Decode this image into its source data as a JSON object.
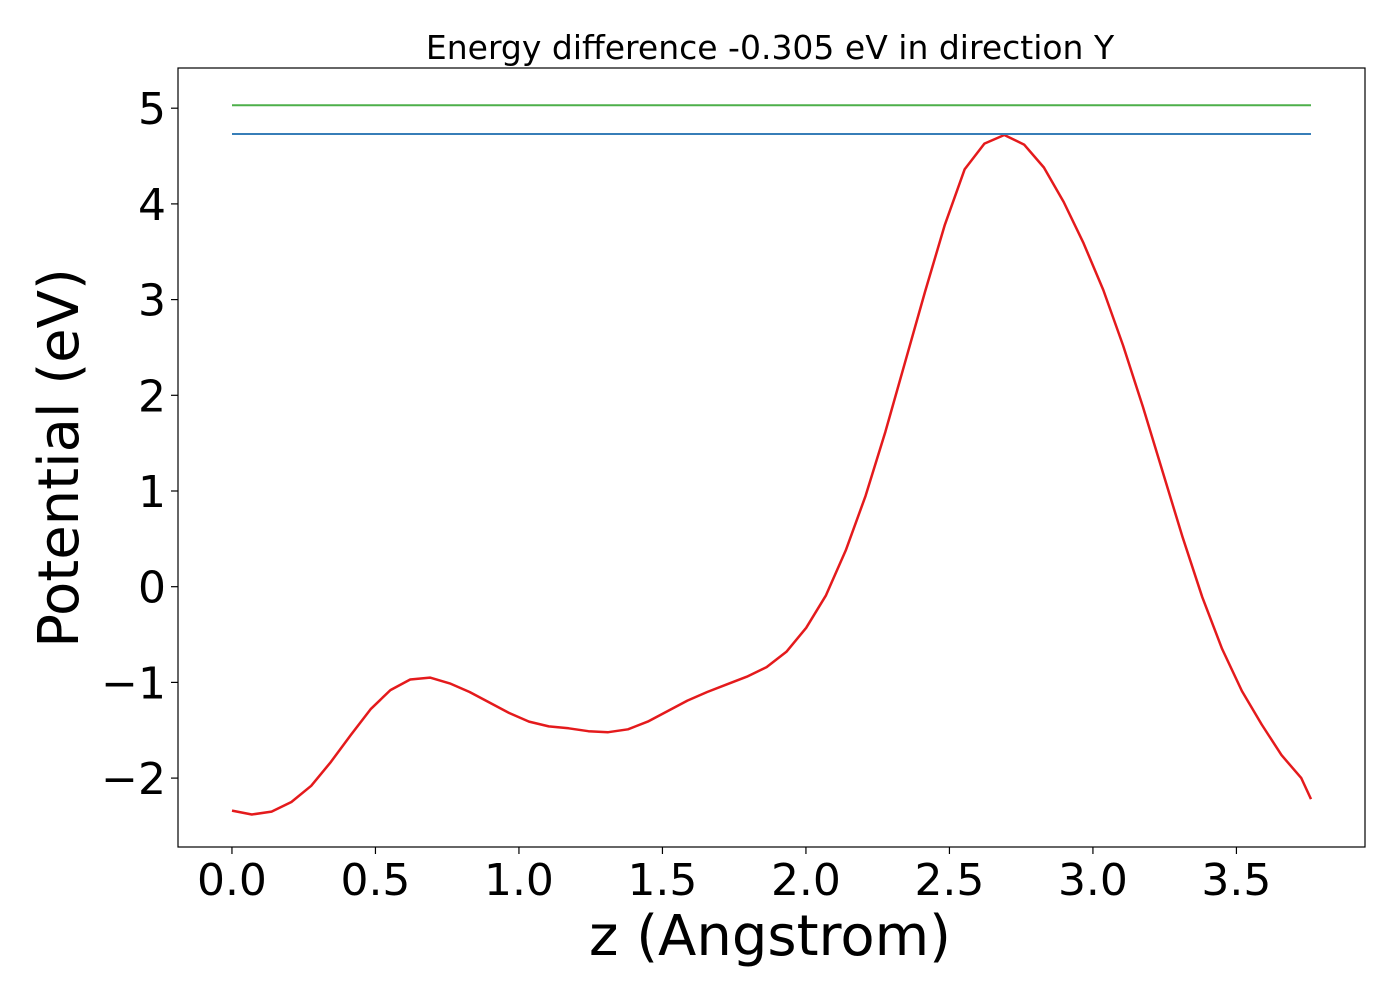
{
  "chart_data": {
    "type": "line",
    "title": "Energy difference -0.305 eV in direction Y",
    "xlabel": "z (Angstrom)",
    "ylabel": "Potential (eV)",
    "xlim": [
      -0.188,
      3.948
    ],
    "ylim": [
      -2.72,
      5.42
    ],
    "xticks": [
      0.0,
      0.5,
      1.0,
      1.5,
      2.0,
      2.5,
      3.0,
      3.5
    ],
    "xtick_labels": [
      "0.0",
      "0.5",
      "1.0",
      "1.5",
      "2.0",
      "2.5",
      "3.0",
      "3.5"
    ],
    "yticks": [
      -2,
      -1,
      0,
      1,
      2,
      3,
      4,
      5
    ],
    "ytick_labels": [
      "−2",
      "−1",
      "0",
      "1",
      "2",
      "3",
      "4",
      "5"
    ],
    "grid": false,
    "legend": "none",
    "series": [
      {
        "color": "#e41a1c",
        "x": [
          0.0,
          0.069,
          0.138,
          0.207,
          0.276,
          0.345,
          0.414,
          0.483,
          0.552,
          0.621,
          0.69,
          0.759,
          0.828,
          0.897,
          0.966,
          1.035,
          1.104,
          1.173,
          1.242,
          1.311,
          1.38,
          1.449,
          1.518,
          1.587,
          1.656,
          1.725,
          1.794,
          1.863,
          1.932,
          2.001,
          2.07,
          2.139,
          2.208,
          2.277,
          2.346,
          2.415,
          2.484,
          2.553,
          2.622,
          2.691,
          2.76,
          2.829,
          2.898,
          2.967,
          3.036,
          3.105,
          3.174,
          3.243,
          3.312,
          3.381,
          3.45,
          3.519,
          3.588,
          3.657,
          3.726,
          3.76
        ],
        "y": [
          -2.34,
          -2.38,
          -2.35,
          -2.25,
          -2.08,
          -1.83,
          -1.55,
          -1.28,
          -1.08,
          -0.97,
          -0.95,
          -1.01,
          -1.1,
          -1.21,
          -1.32,
          -1.41,
          -1.46,
          -1.48,
          -1.51,
          -1.52,
          -1.49,
          -1.41,
          -1.3,
          -1.19,
          -1.1,
          -1.02,
          -0.94,
          -0.84,
          -0.68,
          -0.43,
          -0.09,
          0.38,
          0.95,
          1.62,
          2.35,
          3.08,
          3.78,
          4.36,
          4.63,
          4.72,
          4.62,
          4.38,
          4.02,
          3.59,
          3.1,
          2.52,
          1.88,
          1.2,
          0.52,
          -0.11,
          -0.65,
          -1.09,
          -1.44,
          -1.76,
          -2.0,
          -2.22
        ]
      },
      {
        "color": "#377eb8",
        "x": [
          0.0,
          3.76
        ],
        "y": [
          4.73,
          4.73
        ]
      },
      {
        "color": "#4daf4a",
        "x": [
          0.0,
          3.76
        ],
        "y": [
          5.03,
          5.03
        ]
      }
    ]
  }
}
